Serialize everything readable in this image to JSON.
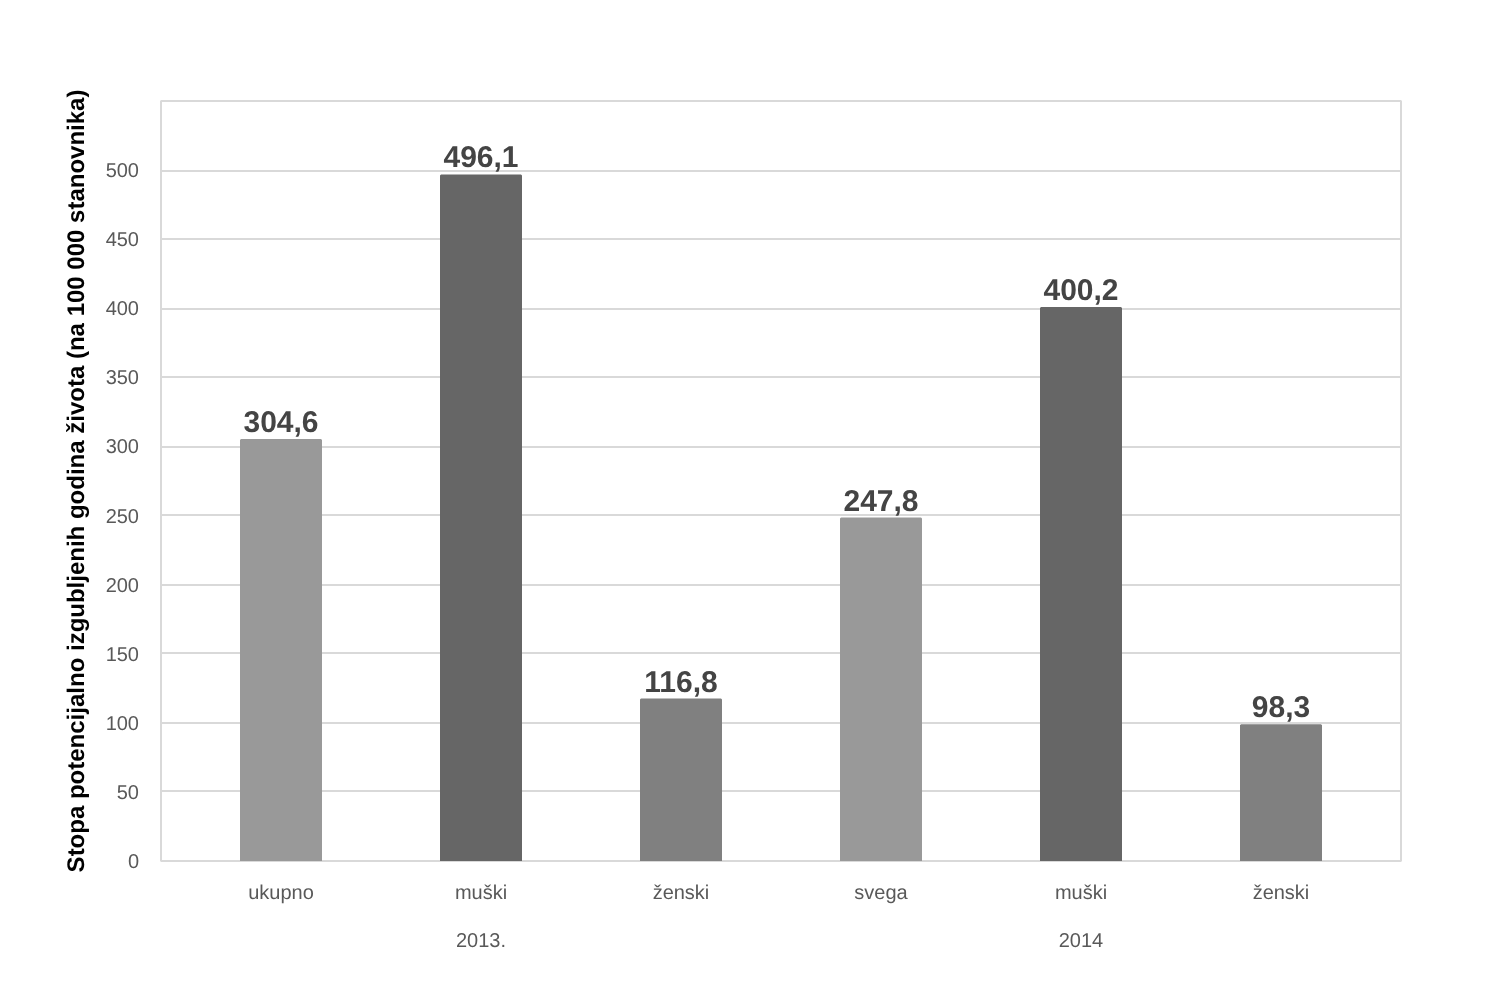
{
  "chart_data": {
    "type": "bar",
    "ylabel": "Stopa potencijalno izgubljenih godina života (na 100 000 stanovnika)",
    "categories": [
      "ukupno",
      "muški",
      "ženski",
      "svega",
      "muški",
      "ženski"
    ],
    "values": [
      304.6,
      496.1,
      116.8,
      247.8,
      400.2,
      98.3
    ],
    "colors": [
      "#999999",
      "#666666",
      "#808080",
      "#999999",
      "#666666",
      "#808080"
    ],
    "value_labels": [
      "304,6",
      "496,1",
      "116,8",
      "247,8",
      "400,2",
      "98,3"
    ],
    "annotations": [
      "2013.",
      "2014"
    ],
    "ylim": [
      0,
      550
    ],
    "yticks": [
      0,
      50,
      100,
      150,
      200,
      250,
      300,
      350,
      400,
      450,
      500,
      {
        "value": 550,
        "label": null
      }
    ],
    "grid": "y"
  }
}
